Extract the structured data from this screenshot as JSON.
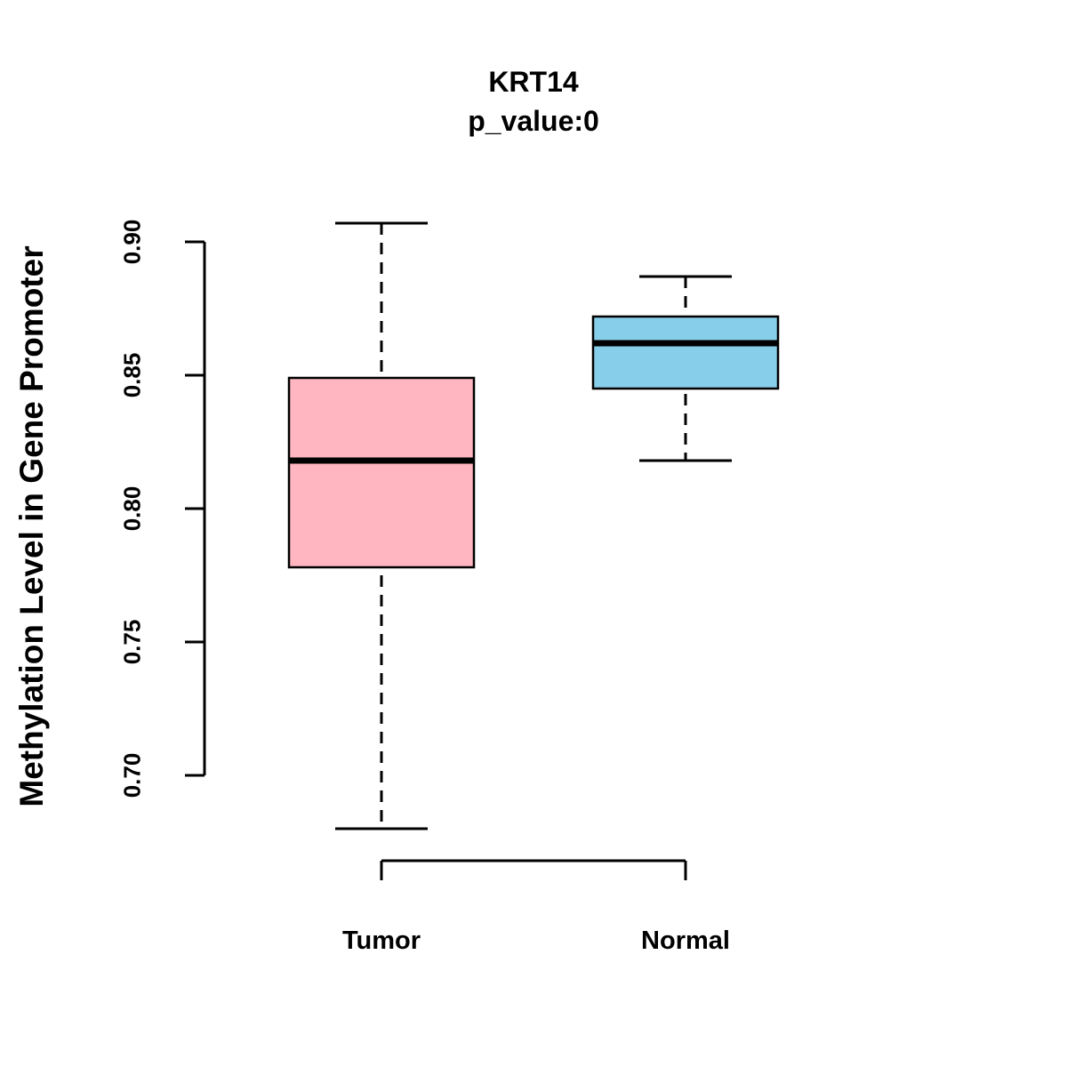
{
  "chart_data": {
    "type": "boxplot",
    "title": "KRT14",
    "subtitle": "p_value:0",
    "ylabel": "Methylation Level in Gene Promoter",
    "xlabel": "",
    "categories": [
      "Tumor",
      "Normal"
    ],
    "yticks": [
      0.7,
      0.75,
      0.8,
      0.85,
      0.9
    ],
    "ytick_labels": [
      "0.70",
      "0.75",
      "0.80",
      "0.85",
      "0.90"
    ],
    "ylim": [
      0.67,
      0.91
    ],
    "grid": "off",
    "legend": "none",
    "axis_color": "#000000",
    "series": [
      {
        "name": "Tumor",
        "color": "#FFB6C1",
        "whisker_low": 0.68,
        "q1": 0.778,
        "median": 0.818,
        "q3": 0.849,
        "whisker_high": 0.907
      },
      {
        "name": "Normal",
        "color": "#87CEEB",
        "whisker_low": 0.818,
        "q1": 0.845,
        "median": 0.862,
        "q3": 0.872,
        "whisker_high": 0.887
      }
    ]
  }
}
